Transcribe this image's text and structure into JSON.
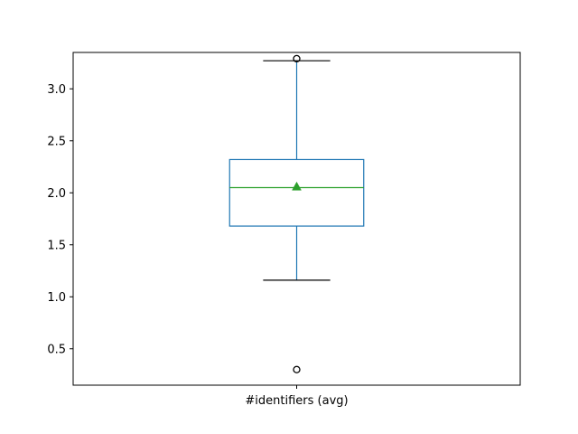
{
  "chart_data": {
    "type": "box",
    "categories": [
      "#identifiers (avg)"
    ],
    "ylim": [
      0.15,
      3.35
    ],
    "yticks": [
      0.5,
      1.0,
      1.5,
      2.0,
      2.5,
      3.0
    ],
    "ytick_labels": [
      "0.5",
      "1.0",
      "1.5",
      "2.0",
      "2.5",
      "3.0"
    ],
    "boxes": [
      {
        "label": "#identifiers (avg)",
        "whisker_low": 1.16,
        "q1": 1.68,
        "median": 2.05,
        "mean": 2.06,
        "q3": 2.32,
        "whisker_high": 3.27,
        "outliers": [
          0.3,
          3.29
        ]
      }
    ],
    "grid": false,
    "colors": {
      "box": "#1f77b4",
      "median": "#2ca02c",
      "mean_marker": "#2ca02c",
      "whisker_cap": "#000000",
      "flier": "#000000"
    }
  }
}
